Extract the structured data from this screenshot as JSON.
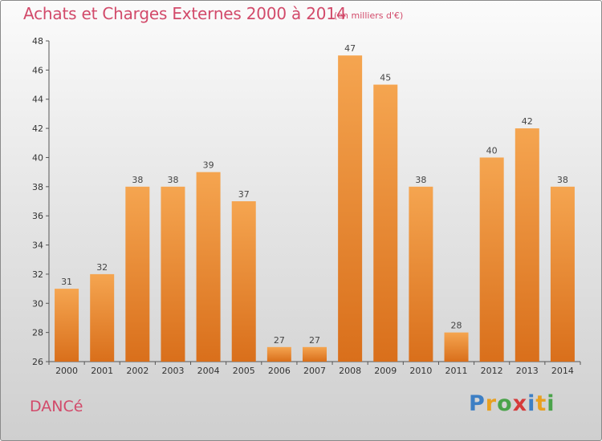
{
  "header": {
    "title": "Achats et Charges Externes 2000 à 2014",
    "subtitle": "(en milliers d'€)"
  },
  "footer": {
    "commune": "DANCé",
    "brand": "Proxiti",
    "brand_letters": [
      {
        "char": "P",
        "color": "#3d7fc4"
      },
      {
        "char": "r",
        "color": "#e8a020"
      },
      {
        "char": "o",
        "color": "#4aa34a"
      },
      {
        "char": "x",
        "color": "#d63a3a"
      },
      {
        "char": "i",
        "color": "#3d7fc4"
      },
      {
        "char": "t",
        "color": "#e8a020"
      },
      {
        "char": "i",
        "color": "#4aa34a"
      }
    ]
  },
  "colors": {
    "bar_top": "#f5a550",
    "bar_bottom": "#d96f1b",
    "title": "#d24a6a"
  },
  "chart_data": {
    "type": "bar",
    "title": "Achats et Charges Externes 2000 à 2014",
    "subtitle": "(en milliers d'€)",
    "categories": [
      "2000",
      "2001",
      "2002",
      "2003",
      "2004",
      "2005",
      "2006",
      "2007",
      "2008",
      "2009",
      "2010",
      "2011",
      "2012",
      "2013",
      "2014"
    ],
    "values": [
      31,
      32,
      38,
      38,
      39,
      37,
      27,
      27,
      47,
      45,
      38,
      28,
      40,
      42,
      38
    ],
    "ylim": [
      26,
      48
    ],
    "yticks": [
      26,
      28,
      30,
      32,
      34,
      36,
      38,
      40,
      42,
      44,
      46,
      48
    ],
    "grid": false,
    "xlabel": "",
    "ylabel": ""
  }
}
